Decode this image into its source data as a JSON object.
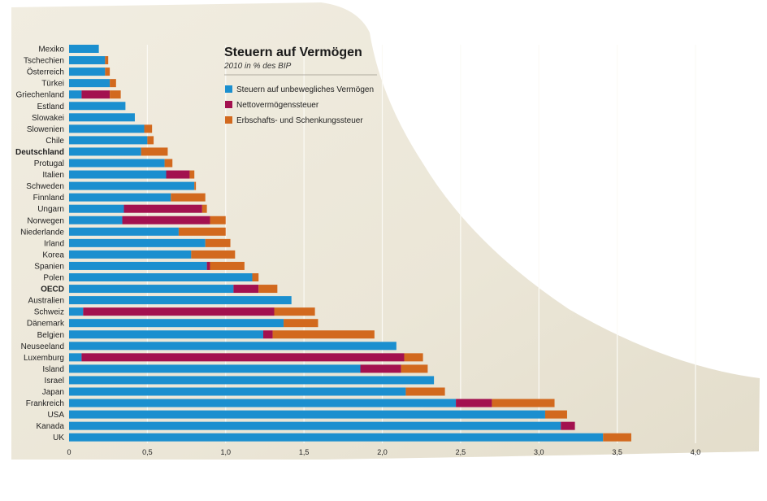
{
  "chart_data": {
    "type": "bar",
    "orientation": "horizontal",
    "stacked": true,
    "title": "Steuern auf Vermögen",
    "subtitle": "2010 in % des BIP",
    "xlim": [
      0,
      4.0
    ],
    "x_ticks": [
      "0",
      "0,5",
      "1,0",
      "1,5",
      "2,0",
      "2,5",
      "3,0",
      "3,5",
      "4,0"
    ],
    "x_tick_values": [
      0,
      0.5,
      1.0,
      1.5,
      2.0,
      2.5,
      3.0,
      3.5,
      4.0
    ],
    "grid": true,
    "legend_position": "top-right",
    "categories": [
      "Mexiko",
      "Tschechien",
      "Österreich",
      "Türkei",
      "Griechenland",
      "Estland",
      "Slowakei",
      "Slowenien",
      "Chile",
      "Deutschland",
      "Protugal",
      "Italien",
      "Schweden",
      "Finnland",
      "Ungarn",
      "Norwegen",
      "Niederlande",
      "Irland",
      "Korea",
      "Spanien",
      "Polen",
      "OECD",
      "Australien",
      "Schweiz",
      "Dänemark",
      "Belgien",
      "Neuseeland",
      "Luxemburg",
      "Island",
      "Israel",
      "Japan",
      "Frankreich",
      "USA",
      "Kanada",
      "UK"
    ],
    "bold_categories": [
      "Deutschland",
      "OECD"
    ],
    "series": [
      {
        "name": "Steuern auf unbewegliches Vermögen",
        "color": "#1b8fcf",
        "values": [
          0.19,
          0.23,
          0.23,
          0.26,
          0.08,
          0.36,
          0.42,
          0.48,
          0.5,
          0.46,
          0.61,
          0.62,
          0.8,
          0.65,
          0.35,
          0.34,
          0.7,
          0.87,
          0.78,
          0.88,
          1.17,
          1.05,
          1.42,
          0.09,
          1.37,
          1.24,
          2.09,
          0.08,
          1.86,
          2.33,
          2.15,
          2.47,
          3.04,
          3.14,
          3.41
        ]
      },
      {
        "name": "Nettovermögenssteuer",
        "color": "#a3114f",
        "values": [
          0,
          0,
          0,
          0,
          0.18,
          0,
          0,
          0,
          0,
          0,
          0,
          0.15,
          0,
          0,
          0.5,
          0.56,
          0,
          0,
          0,
          0.02,
          0,
          0.16,
          0,
          1.22,
          0,
          0.06,
          0,
          2.06,
          0.26,
          0,
          0,
          0.23,
          0,
          0.09,
          0
        ]
      },
      {
        "name": "Erbschafts- und Schenkungssteuer",
        "color": "#d2691e",
        "values": [
          0,
          0.02,
          0.03,
          0.04,
          0.07,
          0,
          0,
          0.05,
          0.04,
          0.17,
          0.05,
          0.03,
          0.01,
          0.22,
          0.03,
          0.1,
          0.3,
          0.16,
          0.28,
          0.22,
          0.04,
          0.12,
          0,
          0.26,
          0.22,
          0.65,
          0,
          0.12,
          0.17,
          0,
          0.25,
          0.4,
          0.14,
          0,
          0.18
        ]
      }
    ]
  }
}
